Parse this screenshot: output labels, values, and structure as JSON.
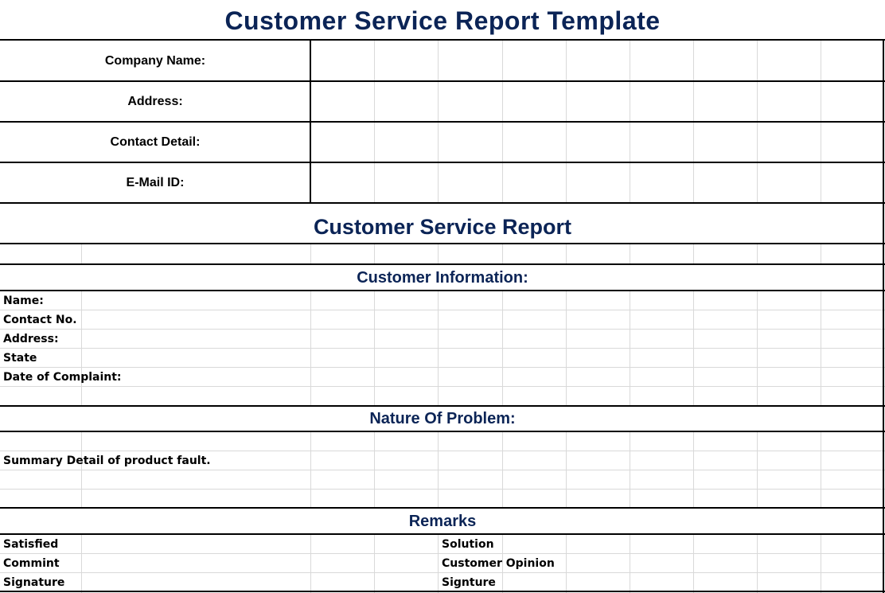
{
  "title": "Customer Service Report Template",
  "header_fields": [
    {
      "label": "Company Name:"
    },
    {
      "label": "Address:"
    },
    {
      "label": "Contact Detail:"
    },
    {
      "label": "E-Mail ID:"
    }
  ],
  "report_title": "Customer Service Report",
  "customer_information": {
    "heading": "Customer Information:",
    "fields": [
      "Name:",
      "Contact No.",
      "Address:",
      "State",
      "Date of Complaint:"
    ]
  },
  "nature_of_problem": {
    "heading": "Nature Of Problem:",
    "summary_label": "Summary Detail of product fault."
  },
  "remarks": {
    "heading": "Remarks",
    "left": [
      "Satisfied",
      "Commint",
      "Signature"
    ],
    "right": [
      "Solution",
      "Customer Opinion",
      "Signture"
    ]
  },
  "colors": {
    "heading": "#0b2456",
    "gridline": "#d9d9d9",
    "border": "#000000"
  }
}
